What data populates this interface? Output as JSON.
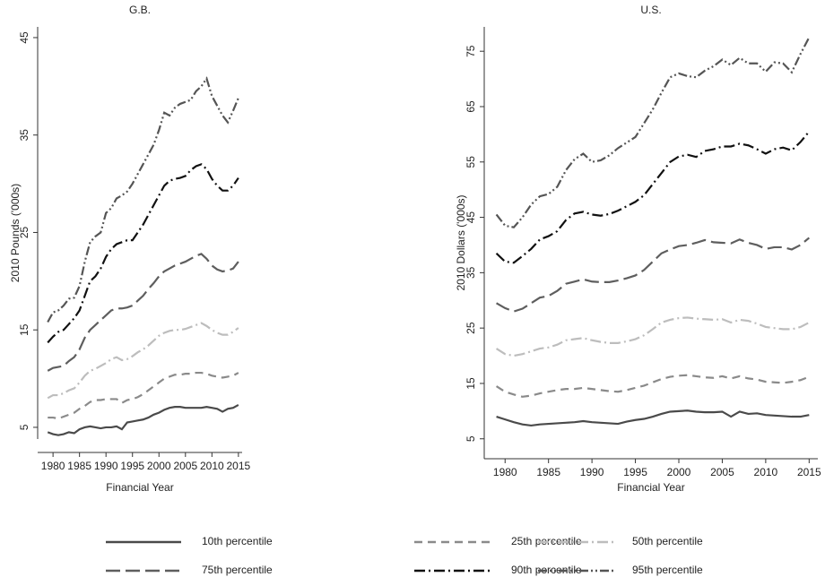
{
  "chart_data": [
    {
      "type": "line",
      "title": "G.B.",
      "x_label": "Financial Year",
      "y_label": "2010 Pounds ('000s)",
      "x": [
        1979,
        1980,
        1981,
        1982,
        1983,
        1984,
        1985,
        1986,
        1987,
        1988,
        1989,
        1990,
        1991,
        1992,
        1993,
        1994,
        1995,
        1996,
        1997,
        1998,
        1999,
        2000,
        2001,
        2002,
        2003,
        2004,
        2005,
        2006,
        2007,
        2008,
        2009,
        2010,
        2011,
        2012,
        2013,
        2014,
        2015
      ],
      "xlim": [
        1977.1,
        2015.7
      ],
      "xticks": [
        1980,
        1985,
        1990,
        1995,
        2000,
        2005,
        2010,
        2015
      ],
      "ylim": [
        3.8,
        46.1
      ],
      "yticks": [
        5,
        15,
        25,
        35,
        45
      ],
      "series": [
        {
          "name": "10th percentile",
          "color": "#4a4a4a",
          "style": "solid",
          "values": [
            4.5,
            4.3,
            4.2,
            4.3,
            4.5,
            4.4,
            4.8,
            5.0,
            5.1,
            5.0,
            4.9,
            5.0,
            5.0,
            5.1,
            4.8,
            5.5,
            5.6,
            5.7,
            5.8,
            6.0,
            6.3,
            6.5,
            6.8,
            7.0,
            7.1,
            7.1,
            7.0,
            7.0,
            7.0,
            7.0,
            7.1,
            7.0,
            6.9,
            6.6,
            6.9,
            7.0,
            7.3
          ]
        },
        {
          "name": "25th percentile",
          "color": "#8a8a8a",
          "style": "dash",
          "values": [
            6.0,
            6.0,
            5.9,
            6.1,
            6.3,
            6.5,
            6.9,
            7.2,
            7.6,
            7.8,
            7.8,
            7.9,
            7.9,
            7.9,
            7.5,
            7.8,
            7.9,
            8.1,
            8.4,
            8.8,
            9.2,
            9.6,
            10.0,
            10.2,
            10.4,
            10.4,
            10.5,
            10.5,
            10.6,
            10.6,
            10.5,
            10.3,
            10.2,
            10.1,
            10.2,
            10.3,
            10.6
          ]
        },
        {
          "name": "50th percentile",
          "color": "#bdbdbd",
          "style": "dashdot",
          "values": [
            8.0,
            8.3,
            8.3,
            8.5,
            8.8,
            9.0,
            9.6,
            10.3,
            10.8,
            11.0,
            11.3,
            11.6,
            12.0,
            12.2,
            11.9,
            12.0,
            12.3,
            12.7,
            13.0,
            13.4,
            13.9,
            14.4,
            14.7,
            14.9,
            15.0,
            15.0,
            15.1,
            15.3,
            15.5,
            15.7,
            15.4,
            15.0,
            14.7,
            14.5,
            14.5,
            14.8,
            15.2
          ]
        },
        {
          "name": "75th percentile",
          "color": "#5e5e5e",
          "style": "longdash",
          "values": [
            10.8,
            11.1,
            11.2,
            11.3,
            11.8,
            12.2,
            13.0,
            14.2,
            15.0,
            15.5,
            16.0,
            16.5,
            17.0,
            17.2,
            17.2,
            17.3,
            17.5,
            18.0,
            18.5,
            19.2,
            19.8,
            20.5,
            21.0,
            21.3,
            21.6,
            21.8,
            22.0,
            22.3,
            22.6,
            22.8,
            22.3,
            21.6,
            21.2,
            21.0,
            21.1,
            21.3,
            22.0
          ]
        },
        {
          "name": "90th percentile",
          "color": "#111111",
          "style": "dashdot",
          "values": [
            13.7,
            14.3,
            14.8,
            15.0,
            15.6,
            16.2,
            17.0,
            18.5,
            20.0,
            20.5,
            21.3,
            22.5,
            23.3,
            23.8,
            24.0,
            24.2,
            24.2,
            25.0,
            25.8,
            26.8,
            27.8,
            28.8,
            29.8,
            30.3,
            30.5,
            30.6,
            30.8,
            31.4,
            31.8,
            32.0,
            31.5,
            30.5,
            29.8,
            29.3,
            29.3,
            29.8,
            30.6
          ]
        },
        {
          "name": "95th percentile",
          "color": "#555555",
          "style": "dashdotdot",
          "values": [
            15.8,
            16.8,
            17.0,
            17.5,
            18.2,
            18.3,
            19.5,
            22.0,
            24.0,
            24.6,
            25.0,
            27.0,
            27.5,
            28.5,
            28.8,
            29.2,
            30.0,
            31.0,
            32.0,
            33.0,
            34.0,
            35.5,
            37.3,
            37.0,
            37.8,
            38.2,
            38.4,
            38.6,
            39.5,
            40.0,
            40.8,
            39.0,
            38.0,
            37.0,
            36.3,
            37.5,
            38.8
          ]
        }
      ]
    },
    {
      "type": "line",
      "title": "U.S.",
      "x_label": "Financial Year",
      "y_label": "2010 Dollars ('000s)",
      "x": [
        1979,
        1980,
        1981,
        1982,
        1983,
        1984,
        1985,
        1986,
        1987,
        1988,
        1989,
        1990,
        1991,
        1992,
        1993,
        1994,
        1995,
        1996,
        1997,
        1998,
        1999,
        2000,
        2001,
        2002,
        2003,
        2004,
        2005,
        2006,
        2007,
        2008,
        2009,
        2010,
        2011,
        2012,
        2013,
        2014,
        2015
      ],
      "xlim": [
        1977.6,
        2016.0
      ],
      "xticks": [
        1980,
        1985,
        1990,
        1995,
        2000,
        2005,
        2010,
        2015
      ],
      "ylim": [
        1.4,
        79.4
      ],
      "yticks": [
        5,
        15,
        25,
        35,
        45,
        55,
        65,
        75
      ],
      "series": [
        {
          "color": "#4a4a4a",
          "style": "solid",
          "values": [
            9.0,
            8.5,
            8.0,
            7.6,
            7.4,
            7.6,
            7.7,
            7.8,
            7.9,
            8.0,
            8.2,
            8.0,
            7.9,
            7.8,
            7.7,
            8.1,
            8.4,
            8.6,
            9.0,
            9.5,
            9.9,
            10.0,
            10.1,
            9.9,
            9.8,
            9.8,
            9.9,
            9.0,
            9.9,
            9.5,
            9.6,
            9.3,
            9.2,
            9.1,
            9.0,
            9.0,
            9.3
          ]
        },
        {
          "color": "#8a8a8a",
          "style": "dash",
          "values": [
            14.5,
            13.5,
            13.0,
            12.6,
            12.8,
            13.2,
            13.5,
            13.8,
            14.0,
            14.0,
            14.2,
            14.0,
            13.8,
            13.6,
            13.5,
            13.8,
            14.2,
            14.6,
            15.2,
            15.8,
            16.2,
            16.4,
            16.5,
            16.3,
            16.1,
            16.0,
            16.3,
            15.9,
            16.3,
            15.9,
            15.7,
            15.3,
            15.2,
            15.1,
            15.3,
            15.6,
            16.2
          ]
        },
        {
          "color": "#bdbdbd",
          "style": "dashdot",
          "values": [
            21.3,
            20.3,
            20.0,
            20.3,
            20.8,
            21.3,
            21.5,
            22.0,
            22.8,
            23.0,
            23.2,
            22.8,
            22.5,
            22.3,
            22.3,
            22.6,
            23.0,
            23.7,
            24.8,
            26.0,
            26.5,
            26.8,
            26.9,
            26.7,
            26.6,
            26.5,
            26.6,
            26.0,
            26.5,
            26.3,
            25.8,
            25.2,
            25.0,
            24.8,
            24.8,
            25.2,
            26.0
          ]
        },
        {
          "color": "#5e5e5e",
          "style": "longdash",
          "values": [
            29.5,
            28.6,
            28.0,
            28.5,
            29.5,
            30.5,
            30.8,
            31.7,
            33.0,
            33.4,
            33.8,
            33.4,
            33.3,
            33.3,
            33.6,
            34.0,
            34.5,
            35.5,
            37.0,
            38.5,
            39.2,
            39.8,
            40.0,
            40.4,
            40.9,
            40.5,
            40.4,
            40.3,
            41.0,
            40.4,
            40.0,
            39.3,
            39.6,
            39.6,
            39.2,
            40.0,
            41.3
          ]
        },
        {
          "color": "#111111",
          "style": "dashdot",
          "values": [
            38.5,
            37.0,
            36.8,
            38.0,
            39.3,
            41.0,
            41.6,
            42.5,
            44.5,
            45.7,
            46.0,
            45.5,
            45.3,
            45.6,
            46.2,
            47.0,
            47.8,
            49.0,
            51.0,
            53.0,
            55.0,
            56.0,
            56.3,
            55.9,
            57.0,
            57.3,
            57.8,
            57.8,
            58.3,
            58.0,
            57.3,
            56.5,
            57.3,
            57.6,
            57.1,
            58.6,
            60.5
          ]
        },
        {
          "color": "#555555",
          "style": "dashdotdot",
          "values": [
            45.5,
            43.5,
            43.2,
            45.0,
            47.3,
            48.8,
            49.2,
            50.5,
            53.5,
            55.5,
            56.5,
            55.0,
            55.3,
            56.2,
            57.5,
            58.5,
            59.5,
            62.0,
            64.5,
            67.5,
            70.3,
            71.0,
            70.5,
            70.3,
            71.5,
            72.3,
            73.5,
            72.5,
            73.8,
            72.8,
            72.8,
            71.3,
            73.0,
            72.8,
            71.2,
            74.5,
            77.5
          ]
        }
      ]
    }
  ]
}
